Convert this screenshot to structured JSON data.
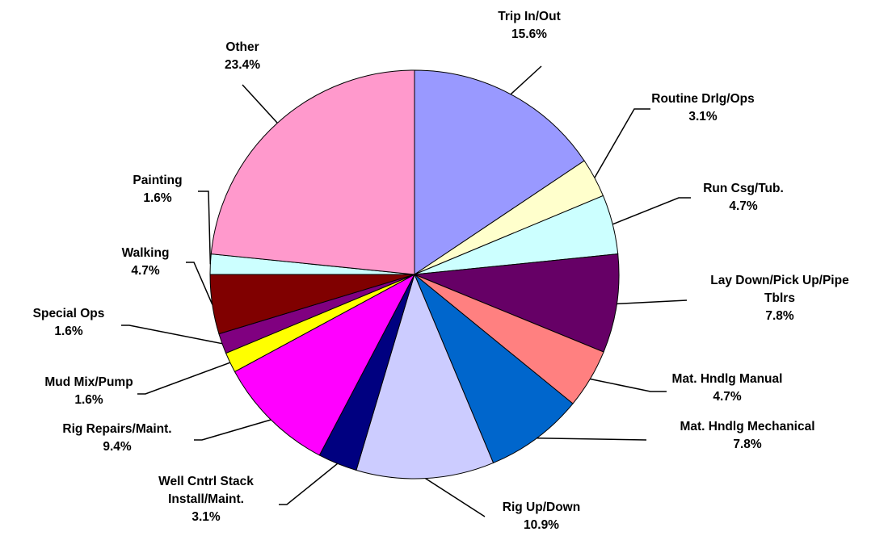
{
  "chart_data": {
    "type": "pie",
    "categories": [
      "Trip In/Out",
      "Routine Drlg/Ops",
      "Run Csg/Tub.",
      "Lay Down/Pick Up/Pipe Tblrs",
      "Mat. Hndlg Manual",
      "Mat. Hndlg Mechanical",
      "Rig Up/Down",
      "Well Cntrl Stack Install/Maint.",
      "Rig Repairs/Maint.",
      "Mud Mix/Pump",
      "Special Ops",
      "Walking",
      "Painting",
      "Other"
    ],
    "values": [
      15.6,
      3.1,
      4.7,
      7.8,
      4.7,
      7.8,
      10.9,
      3.1,
      9.4,
      1.6,
      1.6,
      4.7,
      1.6,
      23.4
    ],
    "value_labels": [
      "15.6%",
      "3.1%",
      "4.7%",
      "7.8%",
      "4.7%",
      "7.8%",
      "10.9%",
      "3.1%",
      "9.4%",
      "1.6%",
      "1.6%",
      "4.7%",
      "1.6%",
      "23.4%"
    ],
    "colors": [
      "#9999ff",
      "#ffffcc",
      "#ccffff",
      "#660066",
      "#ff8080",
      "#0066cc",
      "#ccccff",
      "#000080",
      "#ff00ff",
      "#ffff00",
      "#800080",
      "#800000",
      "#ccffff",
      "#ff99cc"
    ]
  }
}
